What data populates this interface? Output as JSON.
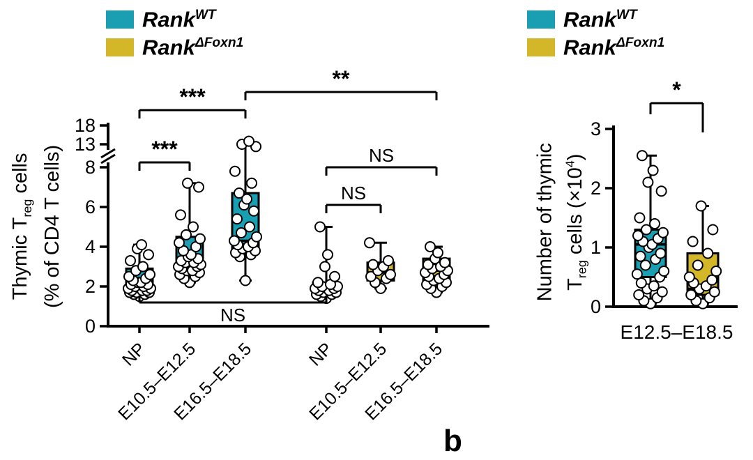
{
  "panel_label": "b",
  "colors": {
    "teal": "#199EB2",
    "yellow": "#D3B728",
    "point_fill": "#FFFFFF",
    "ink": "#000000"
  },
  "legend": {
    "items": [
      {
        "name": "Rank",
        "sup": "WT",
        "color": "teal"
      },
      {
        "name": "Rank",
        "sup": "ΔFoxn1",
        "color": "yellow"
      }
    ]
  },
  "chart_data": [
    {
      "type": "boxplot",
      "id": "thymic-treg-percentage",
      "ylabel_text": "Thymic Treg cells (% of CD4 T cells)",
      "ylabel": {
        "l1_pre": "Thymic T",
        "l1_sub": "reg",
        "l1_post": " cells",
        "l2": "(% of CD4 T cells)"
      },
      "y_ticks": [
        0,
        2,
        4,
        6,
        8,
        13,
        18
      ],
      "y_axis_break": [
        8,
        13
      ],
      "ylim": [
        0,
        18
      ],
      "categories": [
        "NP",
        "E10.5–E12.5",
        "E16.5–E18.5",
        "NP",
        "E10.5–E12.5",
        "E16.5–E18.5"
      ],
      "groups": [
        {
          "category": "NP",
          "genotype": "Rank WT",
          "color": "teal",
          "box": {
            "lo": 1.5,
            "q1": 1.7,
            "median": 2.1,
            "q3": 2.9,
            "hi": 4.1
          },
          "points": [
            1.5,
            1.6,
            1.6,
            1.7,
            1.7,
            1.7,
            1.8,
            1.8,
            1.8,
            1.9,
            1.9,
            2.0,
            2.0,
            2.1,
            2.1,
            2.2,
            2.2,
            2.3,
            2.4,
            2.5,
            2.6,
            2.8,
            3.0,
            3.3,
            3.6,
            3.9,
            4.1
          ]
        },
        {
          "category": "E10.5–E12.5",
          "genotype": "Rank WT",
          "color": "teal",
          "box": {
            "lo": 2.2,
            "q1": 2.8,
            "median": 3.3,
            "q3": 4.5,
            "hi": 7.2
          },
          "points": [
            2.2,
            2.4,
            2.5,
            2.6,
            2.7,
            2.8,
            2.8,
            2.9,
            3.0,
            3.0,
            3.1,
            3.2,
            3.2,
            3.3,
            3.4,
            3.5,
            3.6,
            3.8,
            4.0,
            4.2,
            4.4,
            4.6,
            5.0,
            5.6,
            7.0,
            7.2
          ]
        },
        {
          "category": "E16.5–E18.5",
          "genotype": "Rank WT",
          "color": "teal",
          "box": {
            "lo": 2.3,
            "q1": 3.8,
            "median": 4.3,
            "q3": 6.7,
            "hi": 13.8
          },
          "points": [
            2.3,
            3.5,
            3.6,
            3.7,
            3.8,
            3.9,
            4.0,
            4.1,
            4.2,
            4.3,
            4.5,
            4.7,
            5.0,
            5.4,
            5.8,
            6.1,
            6.4,
            6.7,
            7.2,
            7.8,
            12.5,
            13.0,
            13.8
          ]
        },
        {
          "category": "NP",
          "genotype": "Rank ΔFoxn1",
          "color": "yellow",
          "box": {
            "lo": 1.4,
            "q1": 1.6,
            "median": 1.9,
            "q3": 2.2,
            "hi": 5.0
          },
          "points": [
            1.4,
            1.5,
            1.6,
            1.6,
            1.7,
            1.7,
            1.8,
            1.8,
            1.9,
            1.9,
            2.0,
            2.0,
            2.1,
            2.2,
            2.5,
            3.0,
            3.6,
            5.0
          ]
        },
        {
          "category": "E10.5–E12.5",
          "genotype": "Rank ΔFoxn1",
          "color": "yellow",
          "box": {
            "lo": 1.9,
            "q1": 2.3,
            "median": 2.7,
            "q3": 3.2,
            "hi": 4.2
          },
          "points": [
            1.9,
            2.2,
            2.4,
            2.5,
            2.6,
            2.8,
            3.0,
            3.1,
            3.3,
            4.2
          ]
        },
        {
          "category": "E16.5–E18.5",
          "genotype": "Rank ΔFoxn1",
          "color": "yellow",
          "box": {
            "lo": 1.7,
            "q1": 2.2,
            "median": 2.8,
            "q3": 3.4,
            "hi": 4.0
          },
          "points": [
            1.7,
            1.9,
            2.0,
            2.1,
            2.2,
            2.3,
            2.4,
            2.5,
            2.6,
            2.7,
            2.8,
            2.9,
            3.0,
            3.1,
            3.2,
            3.4,
            3.7,
            4.0
          ]
        }
      ],
      "significance": [
        {
          "a": 0,
          "b": 2,
          "label": "***"
        },
        {
          "a": 0,
          "b": 1,
          "label": "***"
        },
        {
          "a": 2,
          "b": 5,
          "label": "**"
        },
        {
          "a": 3,
          "b": 5,
          "label": "NS"
        },
        {
          "a": 3,
          "b": 4,
          "label": "NS"
        },
        {
          "a": 0,
          "b": 3,
          "label": "NS"
        }
      ]
    },
    {
      "type": "boxplot",
      "id": "thymic-treg-number",
      "ylabel_text": "Number of thymic Treg cells (×10^4)",
      "ylabel": {
        "l1": "Number of thymic",
        "l2_pre": "T",
        "l2_sub": "reg",
        "l2_post": " cells (×10",
        "l2_sup": "4",
        "l2_end": ")"
      },
      "y_ticks": [
        0,
        1,
        2,
        3
      ],
      "ylim": [
        0,
        3
      ],
      "x_label": "E12.5–E18.5",
      "groups": [
        {
          "category": "E12.5–E18.5",
          "genotype": "Rank WT",
          "color": "teal",
          "box": {
            "lo": 0.05,
            "q1": 0.5,
            "median": 1.05,
            "q3": 1.3,
            "hi": 2.55
          },
          "points": [
            0.05,
            0.1,
            0.15,
            0.2,
            0.25,
            0.3,
            0.35,
            0.4,
            0.5,
            0.55,
            0.6,
            0.7,
            0.8,
            0.85,
            0.9,
            1.0,
            1.05,
            1.1,
            1.15,
            1.2,
            1.25,
            1.3,
            1.4,
            1.5,
            1.95,
            2.1,
            2.3,
            2.55
          ]
        },
        {
          "category": "E12.5–E18.5",
          "genotype": "Rank ΔFoxn1",
          "color": "yellow",
          "box": {
            "lo": 0.05,
            "q1": 0.2,
            "median": 0.3,
            "q3": 0.9,
            "hi": 1.7
          },
          "points": [
            0.05,
            0.1,
            0.15,
            0.2,
            0.25,
            0.3,
            0.35,
            0.4,
            0.45,
            0.5,
            0.6,
            0.7,
            0.9,
            1.1,
            1.3,
            1.7
          ]
        }
      ],
      "significance": [
        {
          "a": 0,
          "b": 1,
          "label": "*"
        }
      ]
    }
  ]
}
